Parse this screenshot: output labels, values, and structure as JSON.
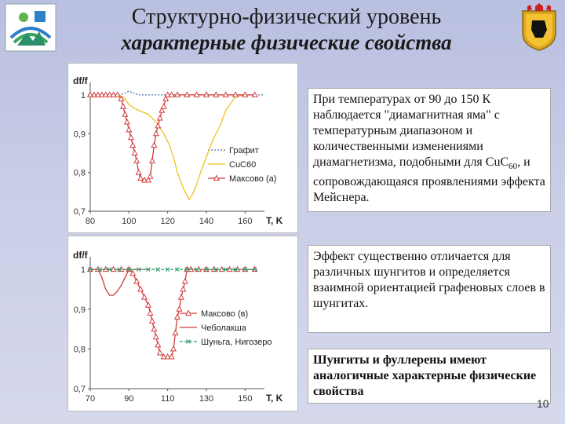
{
  "title": {
    "line1": "Структурно-физический уровень",
    "line2": "характерные физические свойства"
  },
  "text1": {
    "part1": "При температурах от 90 до 150 К наблюдается \"диамагнитная яма\" с температурным диапазоном и количественными изменениями диамагнетизма, подобными для Cu",
    "c": "C",
    "sub": "60",
    "part2": ", и сопровождающаяся проявлениями эффекта Мейснера."
  },
  "text2": "Эффект существенно отличается для различных шунгитов и определяется взаимной ориентацией графеновых слоев в шунгитах.",
  "text3": "Шунгиты и фуллерены имеют аналогичные характерные физические свойства",
  "slide_number": "10",
  "chart_data": [
    {
      "type": "line",
      "ylabel": "df/f",
      "xlabel": "T, K",
      "xlim": [
        80,
        170
      ],
      "ylim": [
        0.7,
        1.02
      ],
      "xticks": [
        "80",
        "100",
        "120",
        "140",
        "160"
      ],
      "yticks": [
        "0,7",
        "0,8",
        "0,9",
        "1"
      ],
      "legend_position": "right",
      "series": [
        {
          "name": "Графит",
          "color": "#4a6fb5",
          "style": "dotted",
          "x": [
            80,
            90,
            95,
            98,
            100,
            102,
            105,
            110,
            120,
            140,
            170
          ],
          "y": [
            1.0,
            1.0,
            1.0,
            1.005,
            1.01,
            1.005,
            1.0,
            1.0,
            1.0,
            1.0,
            1.0
          ]
        },
        {
          "name": "CuC60",
          "color": "#f0c020",
          "style": "solid",
          "x": [
            80,
            95,
            98,
            100,
            103,
            105,
            110,
            114,
            118,
            121,
            123,
            125,
            128,
            131,
            133,
            135,
            137,
            140,
            143,
            147,
            150,
            155,
            160
          ],
          "y": [
            1.0,
            1.0,
            0.99,
            0.975,
            0.965,
            0.96,
            0.95,
            0.93,
            0.9,
            0.87,
            0.84,
            0.8,
            0.76,
            0.73,
            0.745,
            0.77,
            0.8,
            0.84,
            0.88,
            0.92,
            0.96,
            0.995,
            1.0
          ]
        },
        {
          "name": "Максово (а)",
          "color": "#d23a3a",
          "style": "solid-triangles",
          "x": [
            80,
            82,
            84,
            86,
            88,
            90,
            92,
            94,
            96,
            97,
            98,
            99,
            100,
            101,
            102,
            103,
            104,
            105,
            106,
            108,
            110,
            111,
            112,
            113,
            114,
            115,
            116,
            117,
            118,
            119,
            120,
            122,
            125,
            130,
            135,
            140,
            145,
            150,
            155,
            160,
            165
          ],
          "y": [
            1.0,
            1.0,
            1.0,
            1.0,
            1.0,
            1.0,
            1.0,
            1.0,
            0.99,
            0.97,
            0.95,
            0.93,
            0.91,
            0.89,
            0.87,
            0.85,
            0.83,
            0.8,
            0.785,
            0.78,
            0.78,
            0.79,
            0.83,
            0.87,
            0.9,
            0.92,
            0.94,
            0.96,
            0.97,
            0.99,
            1.0,
            1.0,
            1.0,
            1.0,
            1.0,
            1.0,
            1.0,
            1.0,
            1.0,
            1.0,
            1.0
          ]
        }
      ]
    },
    {
      "type": "line",
      "ylabel": "df/f",
      "xlabel": "T, K",
      "xlim": [
        70,
        160
      ],
      "ylim": [
        0.7,
        1.02
      ],
      "xticks": [
        "70",
        "90",
        "110",
        "130",
        "150"
      ],
      "yticks": [
        "0,7",
        "0,8",
        "0,9",
        "1"
      ],
      "legend_position": "right",
      "series": [
        {
          "name": "Максово (в)",
          "color": "#d23a3a",
          "style": "solid-triangles",
          "x": [
            70,
            74,
            78,
            82,
            86,
            90,
            92,
            94,
            96,
            98,
            100,
            101,
            102,
            103,
            104,
            105,
            106,
            108,
            110,
            112,
            113,
            114,
            115,
            116,
            117,
            118,
            119,
            120,
            122,
            126,
            130,
            134,
            138,
            142,
            146,
            150,
            155
          ],
          "y": [
            1.0,
            1.0,
            1.0,
            1.0,
            1.0,
            1.0,
            0.99,
            0.97,
            0.95,
            0.93,
            0.91,
            0.89,
            0.87,
            0.85,
            0.83,
            0.81,
            0.79,
            0.78,
            0.78,
            0.78,
            0.8,
            0.84,
            0.88,
            0.9,
            0.93,
            0.95,
            0.97,
            1.0,
            1.0,
            1.0,
            1.0,
            1.0,
            1.0,
            1.0,
            1.0,
            1.0,
            1.0
          ]
        },
        {
          "name": "Чеболакша",
          "color": "#d23a3a",
          "style": "solid",
          "x": [
            70,
            74,
            76,
            78,
            80,
            82,
            84,
            86,
            88,
            90,
            100
          ],
          "y": [
            1.0,
            1.0,
            0.98,
            0.95,
            0.935,
            0.935,
            0.945,
            0.96,
            0.98,
            1.0,
            1.0
          ]
        },
        {
          "name": "Шуньга, Нигозеро",
          "color": "#2e9a6a",
          "style": "dashed-x",
          "x": [
            70,
            75,
            80,
            85,
            90,
            95,
            100,
            105,
            110,
            115,
            120,
            125,
            130,
            135,
            140,
            145,
            150,
            155
          ],
          "y": [
            1.0,
            1.0,
            1.0,
            1.0,
            1.0,
            1.0,
            1.0,
            1.0,
            1.0,
            1.0,
            1.0,
            1.0,
            1.0,
            1.0,
            1.0,
            1.0,
            1.0,
            1.0
          ]
        }
      ]
    }
  ]
}
